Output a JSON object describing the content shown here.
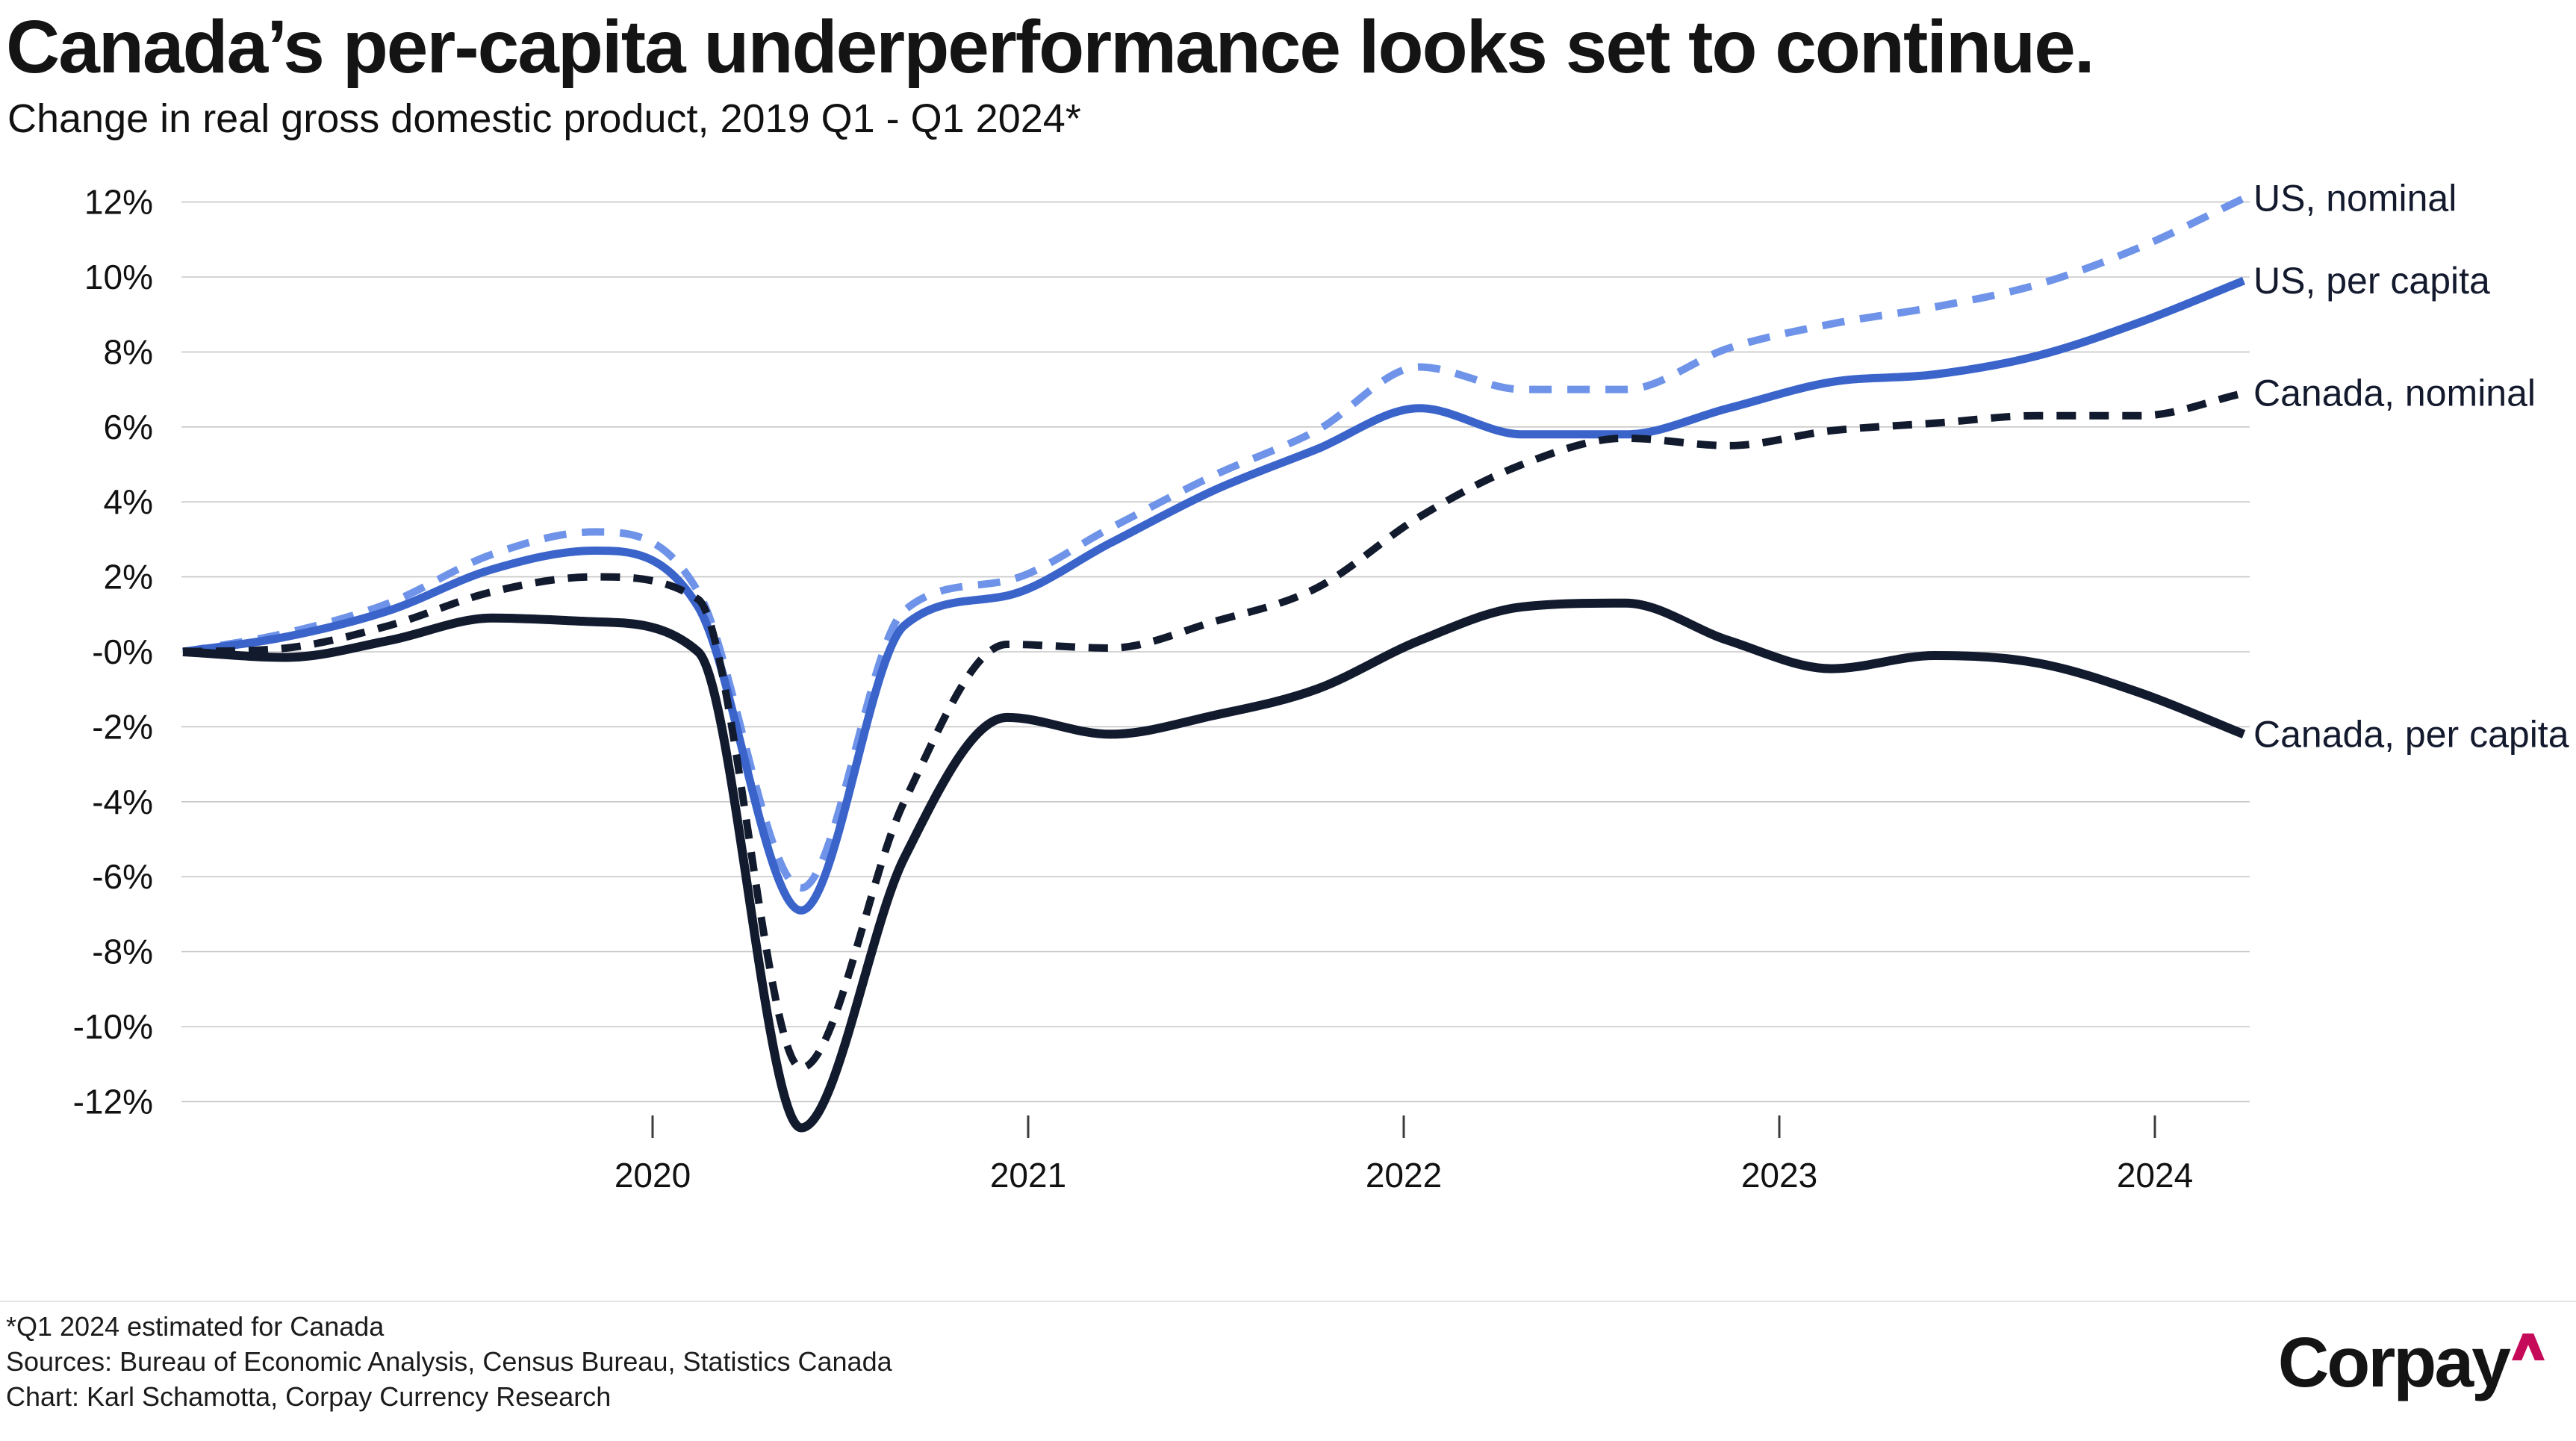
{
  "header": {
    "title": "Canada’s per-capita underperformance looks set to continue.",
    "subtitle": "Change in real gross domestic product, 2019 Q1 - Q1 2024*"
  },
  "chart_data": {
    "type": "line",
    "title": "Change in real gross domestic product, 2019 Q1 - Q1 2024",
    "grid": "horizontal",
    "legend_position": "right-end-labels",
    "ylim": [
      -13,
      12.5
    ],
    "ylabel_format": "percent",
    "categories": [
      "2019 Q1",
      "2019 Q2",
      "2019 Q3",
      "2019 Q4",
      "2020 Q1",
      "2020 Q2",
      "2020 Q3",
      "2020 Q4",
      "2021 Q1",
      "2021 Q2",
      "2021 Q3",
      "2021 Q4",
      "2022 Q1",
      "2022 Q2",
      "2022 Q3",
      "2022 Q4",
      "2023 Q1",
      "2023 Q2",
      "2023 Q3",
      "2023 Q4",
      "2024 Q1"
    ],
    "x_ticks": [
      "2020",
      "2021",
      "2022",
      "2023",
      "2024"
    ],
    "y_ticks": [
      {
        "value": 12,
        "label": "12%"
      },
      {
        "value": 10,
        "label": "10%"
      },
      {
        "value": 8,
        "label": "8%"
      },
      {
        "value": 6,
        "label": "6%"
      },
      {
        "value": 4,
        "label": "4%"
      },
      {
        "value": 2,
        "label": "2%"
      },
      {
        "value": 0,
        "label": "-0%"
      },
      {
        "value": -2,
        "label": "-2%"
      },
      {
        "value": -4,
        "label": "-4%"
      },
      {
        "value": -6,
        "label": "-6%"
      },
      {
        "value": -8,
        "label": "-8%"
      },
      {
        "value": -10,
        "label": "-10%"
      },
      {
        "value": -12,
        "label": "-12%"
      }
    ],
    "series": [
      {
        "name": "US, nominal",
        "color": "#6E93E8",
        "style": "dashed",
        "values": [
          0,
          0.5,
          1.3,
          2.6,
          3.2,
          1.6,
          -6.3,
          1.1,
          1.9,
          3.3,
          4.7,
          5.9,
          7.6,
          7.0,
          7.0,
          8.1,
          8.75,
          9.2,
          9.8,
          10.8,
          12.1
        ]
      },
      {
        "name": "US, per capita",
        "color": "#3B64CB",
        "style": "solid",
        "values": [
          0,
          0.4,
          1.1,
          2.2,
          2.7,
          1.2,
          -6.9,
          0.7,
          1.5,
          2.9,
          4.3,
          5.4,
          6.5,
          5.8,
          5.8,
          6.5,
          7.2,
          7.4,
          7.9,
          8.8,
          9.9
        ]
      },
      {
        "name": "Canada, nominal",
        "color": "#121A2E",
        "style": "dashed",
        "values": [
          0,
          0.1,
          0.7,
          1.6,
          2.0,
          1.4,
          -11.1,
          -4.0,
          0.2,
          0.1,
          0.8,
          1.7,
          3.6,
          5.0,
          5.7,
          5.5,
          5.9,
          6.1,
          6.3,
          6.3,
          6.9
        ]
      },
      {
        "name": "Canada, per capita",
        "color": "#121A2E",
        "style": "solid",
        "values": [
          0,
          -0.15,
          0.3,
          0.9,
          0.8,
          0.0,
          -12.7,
          -5.5,
          -1.75,
          -2.2,
          -1.7,
          -1.0,
          0.3,
          1.2,
          1.3,
          0.3,
          -0.45,
          -0.1,
          -0.3,
          -1.1,
          -2.2
        ]
      }
    ]
  },
  "footer": {
    "note1": "*Q1 2024 estimated for Canada",
    "note2": "Sources: Bureau of Economic Analysis, Census Bureau, Statistics Canada",
    "note3": "Chart: Karl Schamotta, Corpay Currency Research"
  },
  "logo": {
    "text": "Corpay",
    "caret_color": "#C60A5A"
  }
}
